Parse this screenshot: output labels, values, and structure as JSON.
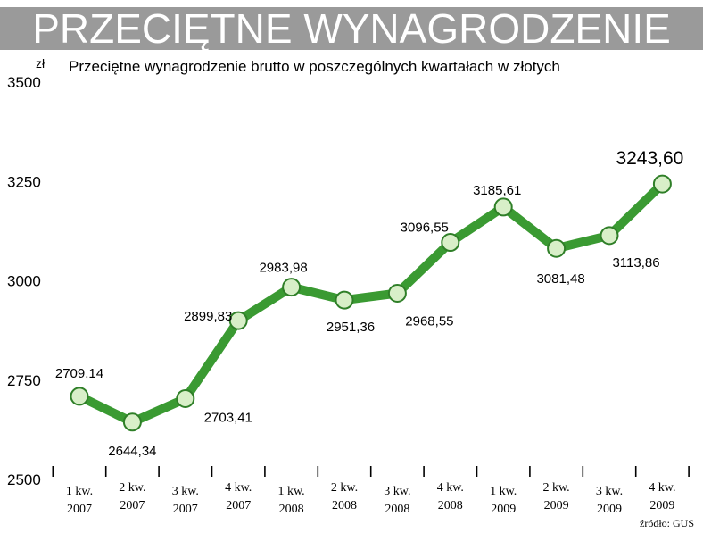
{
  "banner": {
    "title": "PRZECIĘTNE WYNAGRODZENIE"
  },
  "colors": {
    "line": "#3a9a32",
    "marker_fill": "#d8efc8",
    "marker_stroke": "#2f7f28",
    "banner_bg": "#9a9a9a"
  },
  "chart_data": {
    "type": "line",
    "title": "Przeciętne wynagrodzenie brutto w poszczególnych kwartałach w złotych",
    "unit": "zł",
    "source": "źródło: GUS",
    "ylim": [
      2500,
      3500
    ],
    "yticks": [
      "2500",
      "2750",
      "3000",
      "3250",
      "3500"
    ],
    "grid": false,
    "legend": "none",
    "categories": [
      [
        "1 kw.",
        "2007"
      ],
      [
        "2 kw.",
        "2007"
      ],
      [
        "3 kw.",
        "2007"
      ],
      [
        "4 kw.",
        "2007"
      ],
      [
        "1 kw.",
        "2008"
      ],
      [
        "2 kw.",
        "2008"
      ],
      [
        "3 kw.",
        "2008"
      ],
      [
        "4 kw.",
        "2008"
      ],
      [
        "1 kw.",
        "2009"
      ],
      [
        "2 kw.",
        "2009"
      ],
      [
        "3 kw.",
        "2009"
      ],
      [
        "4 kw.",
        "2009"
      ]
    ],
    "values": [
      2709.14,
      2644.34,
      2703.41,
      2899.83,
      2983.98,
      2951.36,
      2968.55,
      3096.55,
      3185.61,
      3081.48,
      3113.86,
      3243.6
    ],
    "labels": [
      "2709,14",
      "2644,34",
      "2703,41",
      "2899,83",
      "2983,98",
      "2951,36",
      "2968,55",
      "3096,55",
      "3185,61",
      "3081,48",
      "3113,86",
      "3243,60"
    ]
  }
}
